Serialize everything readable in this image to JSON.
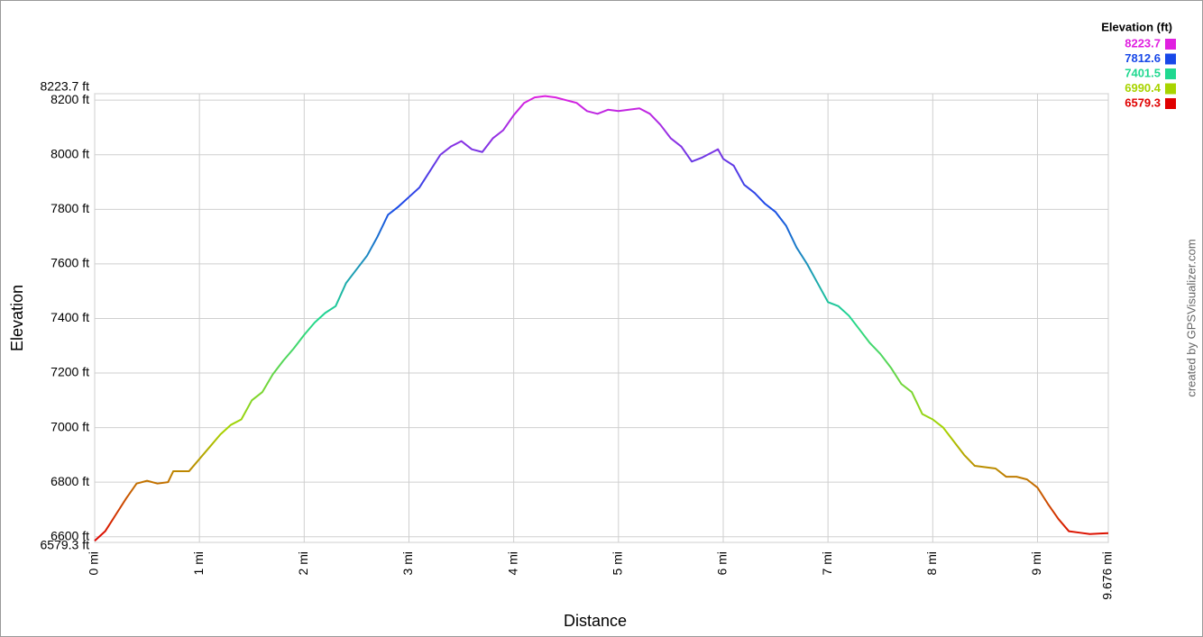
{
  "chart_data": {
    "type": "line",
    "x_label": "Distance",
    "y_label": "Elevation",
    "credit": "created by GPSVisualizer.com",
    "legend_title": "Elevation (ft)",
    "legend": [
      {
        "value": 8223.7,
        "color": "#e020e0"
      },
      {
        "value": 7812.6,
        "color": "#1848e8"
      },
      {
        "value": 7401.5,
        "color": "#20d890"
      },
      {
        "value": 6990.4,
        "color": "#a8d400"
      },
      {
        "value": 6579.3,
        "color": "#e00000"
      }
    ],
    "grid": true,
    "xlim": [
      0,
      9.676
    ],
    "ylim": [
      6579.3,
      8223.7
    ],
    "xticks": [
      {
        "value": 0,
        "label": "0 mi"
      },
      {
        "value": 1,
        "label": "1 mi"
      },
      {
        "value": 2,
        "label": "2 mi"
      },
      {
        "value": 3,
        "label": "3 mi"
      },
      {
        "value": 4,
        "label": "4 mi"
      },
      {
        "value": 5,
        "label": "5 mi"
      },
      {
        "value": 6,
        "label": "6 mi"
      },
      {
        "value": 7,
        "label": "7 mi"
      },
      {
        "value": 8,
        "label": "8 mi"
      },
      {
        "value": 9,
        "label": "9 mi"
      },
      {
        "value": 9.676,
        "label": "9.676 mi"
      }
    ],
    "yticks": [
      {
        "value": 6579.3,
        "label": "6579.3 ft"
      },
      {
        "value": 6600,
        "label": "6600 ft"
      },
      {
        "value": 6800,
        "label": "6800 ft"
      },
      {
        "value": 7000,
        "label": "7000 ft"
      },
      {
        "value": 7200,
        "label": "7200 ft"
      },
      {
        "value": 7400,
        "label": "7400 ft"
      },
      {
        "value": 7600,
        "label": "7600 ft"
      },
      {
        "value": 7800,
        "label": "7800 ft"
      },
      {
        "value": 8000,
        "label": "8000 ft"
      },
      {
        "value": 8200,
        "label": "8200 ft"
      },
      {
        "value": 8223.7,
        "label": "8223.7 ft"
      }
    ],
    "x": [
      0,
      0.1,
      0.2,
      0.3,
      0.4,
      0.5,
      0.6,
      0.7,
      0.75,
      0.9,
      1.0,
      1.1,
      1.2,
      1.3,
      1.4,
      1.5,
      1.6,
      1.7,
      1.8,
      1.9,
      2.0,
      2.1,
      2.2,
      2.3,
      2.4,
      2.5,
      2.6,
      2.7,
      2.8,
      2.9,
      3.0,
      3.1,
      3.2,
      3.3,
      3.4,
      3.5,
      3.6,
      3.7,
      3.8,
      3.9,
      4.0,
      4.1,
      4.2,
      4.3,
      4.4,
      4.5,
      4.6,
      4.7,
      4.8,
      4.9,
      5.0,
      5.1,
      5.2,
      5.3,
      5.4,
      5.5,
      5.6,
      5.7,
      5.8,
      5.9,
      5.95,
      6.0,
      6.1,
      6.2,
      6.3,
      6.4,
      6.5,
      6.6,
      6.7,
      6.8,
      6.9,
      7.0,
      7.1,
      7.2,
      7.3,
      7.4,
      7.5,
      7.6,
      7.7,
      7.8,
      7.9,
      8.0,
      8.1,
      8.2,
      8.3,
      8.4,
      8.5,
      8.6,
      8.7,
      8.8,
      8.9,
      9.0,
      9.1,
      9.2,
      9.3,
      9.4,
      9.5,
      9.6,
      9.676
    ],
    "values": [
      6585,
      6620,
      6680,
      6740,
      6795,
      6805,
      6795,
      6800,
      6840,
      6840,
      6885,
      6930,
      6975,
      7010,
      7030,
      7100,
      7130,
      7195,
      7245,
      7290,
      7340,
      7385,
      7420,
      7445,
      7530,
      7580,
      7630,
      7700,
      7780,
      7810,
      7845,
      7880,
      7940,
      8000,
      8030,
      8050,
      8020,
      8010,
      8060,
      8090,
      8145,
      8190,
      8210,
      8215,
      8210,
      8200,
      8190,
      8160,
      8150,
      8165,
      8160,
      8165,
      8170,
      8150,
      8110,
      8060,
      8030,
      7975,
      7990,
      8010,
      8020,
      7985,
      7960,
      7890,
      7860,
      7820,
      7790,
      7740,
      7660,
      7600,
      7530,
      7460,
      7445,
      7410,
      7360,
      7310,
      7270,
      7220,
      7160,
      7130,
      7050,
      7030,
      7000,
      6950,
      6900,
      6860,
      6855,
      6850,
      6820,
      6820,
      6810,
      6780,
      6720,
      6665,
      6620,
      6615,
      6610,
      6612,
      6613
    ]
  }
}
